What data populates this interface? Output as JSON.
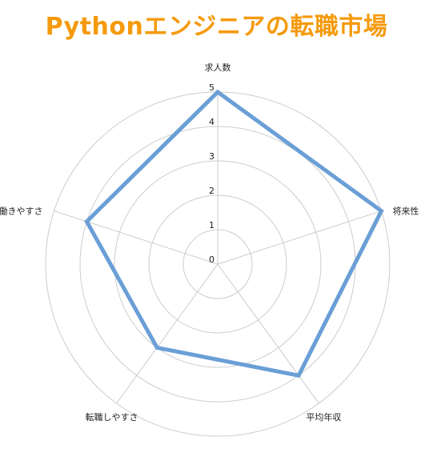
{
  "chart_data": {
    "type": "radar",
    "title": "Pythonエンジニアの転職市場",
    "axes": [
      "求人数",
      "将来性",
      "平均年収",
      "転職しやすさ",
      "働きやすさ"
    ],
    "values": [
      5,
      5,
      4,
      3,
      4
    ],
    "rlim": [
      0,
      5
    ],
    "ticks": [
      "0",
      "1",
      "2",
      "3",
      "4",
      "5"
    ],
    "grid": true,
    "legend": "none",
    "colors": {
      "series": "#6a9fd6",
      "grid": "#cccccc",
      "title": "#f59a0c"
    }
  }
}
